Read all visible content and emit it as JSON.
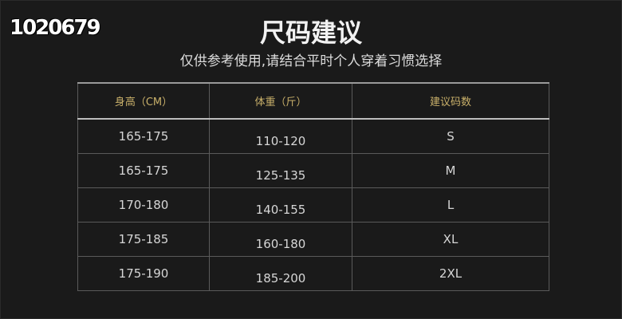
{
  "watermark": "1020679",
  "title": "尺码建议",
  "subtitle": "仅供参考使用,请结合平时个人穿着习惯选择",
  "table": {
    "headers": [
      "身高（CM）",
      "体重（斤）",
      "建议码数"
    ],
    "rows": [
      [
        "165-175",
        "110-120",
        "S"
      ],
      [
        "165-175",
        "125-135",
        "M"
      ],
      [
        "170-180",
        "140-155",
        "L"
      ],
      [
        "175-185",
        "160-180",
        "XL"
      ],
      [
        "175-190",
        "185-200",
        "2XL"
      ]
    ]
  }
}
